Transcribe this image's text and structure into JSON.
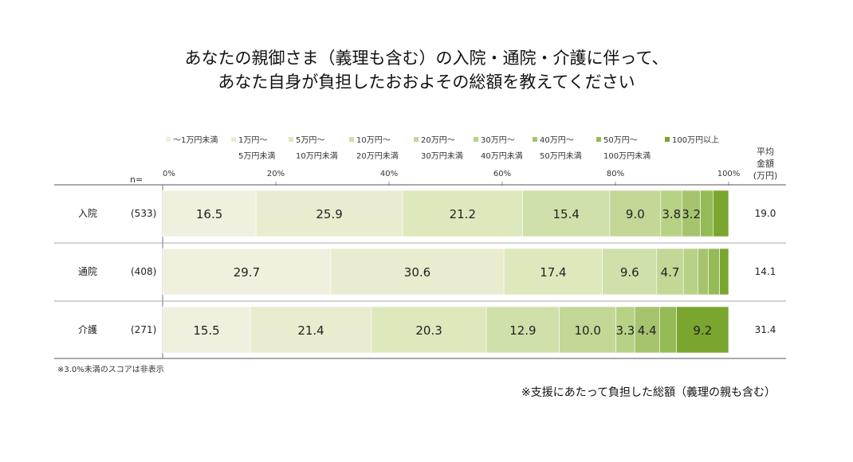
{
  "title_line1": "あなたの親御さま（義理も含む）の入院・通院・介護に伴って、",
  "title_line2": "あなた自身が負担したおおよその総額を教えてください",
  "n_label": "n=",
  "avg_header": [
    "平均",
    "金額",
    "(万円)"
  ],
  "footnote": "※3.0%未満のスコアは非表示",
  "source_note": "※支援にあたって負担した総額（義理の親も含む）",
  "colors": [
    "#f1f0df",
    "#e9eccf",
    "#dde8bd",
    "#d0e0aa",
    "#c3d796",
    "#b7d284",
    "#a6c46e",
    "#94bb56",
    "#7aa52e"
  ],
  "chart_data": {
    "type": "bar",
    "orientation": "horizontal",
    "stacked": true,
    "x_ticks": [
      "0%",
      "20%",
      "40%",
      "60%",
      "80%",
      "100%"
    ],
    "xlim": [
      0,
      100
    ],
    "legend_placement": "top",
    "series": [
      {
        "name": "～1万円未満",
        "values": [
          16.5,
          29.7,
          15.5
        ]
      },
      {
        "name": "1万円～5万円未満",
        "values": [
          25.9,
          30.6,
          21.4
        ]
      },
      {
        "name": "5万円～10万円未満",
        "values": [
          21.2,
          17.4,
          20.3
        ]
      },
      {
        "name": "10万円～20万円未満",
        "values": [
          15.4,
          9.6,
          12.9
        ]
      },
      {
        "name": "20万円～30万円未満",
        "values": [
          9.0,
          4.7,
          10.0
        ]
      },
      {
        "name": "30万円～40万円未満",
        "values": [
          3.8,
          2.6,
          3.3
        ]
      },
      {
        "name": "40万円～50万円未満",
        "values": [
          3.2,
          1.8,
          4.4
        ]
      },
      {
        "name": "50万円～100万円未満",
        "values": [
          2.3,
          2.0,
          3.0
        ]
      },
      {
        "name": "100万円以上",
        "values": [
          2.7,
          1.6,
          9.2
        ]
      }
    ],
    "legend_lines": [
      [
        "～1万円未満",
        ""
      ],
      [
        "1万円～",
        "5万円未満"
      ],
      [
        "5万円～",
        "10万円未満"
      ],
      [
        "10万円～",
        "20万円未満"
      ],
      [
        "20万円～",
        "30万円未満"
      ],
      [
        "30万円～",
        "40万円未満"
      ],
      [
        "40万円～",
        "50万円未満"
      ],
      [
        "50万円～",
        "100万円未満"
      ],
      [
        "100万円以上",
        ""
      ]
    ],
    "rows": [
      {
        "category": "入院",
        "n": "(533)",
        "average": "19.0",
        "labels": [
          "16.5",
          "25.9",
          "21.2",
          "15.4",
          "9.0",
          "3.8",
          "3.2",
          "",
          ""
        ]
      },
      {
        "category": "通院",
        "n": "(408)",
        "average": "14.1",
        "labels": [
          "29.7",
          "30.6",
          "17.4",
          "9.6",
          "4.7",
          "",
          "",
          "",
          ""
        ]
      },
      {
        "category": "介護",
        "n": "(271)",
        "average": "31.4",
        "labels": [
          "15.5",
          "21.4",
          "20.3",
          "12.9",
          "10.0",
          "3.3",
          "4.4",
          "",
          "9.2"
        ]
      }
    ]
  }
}
